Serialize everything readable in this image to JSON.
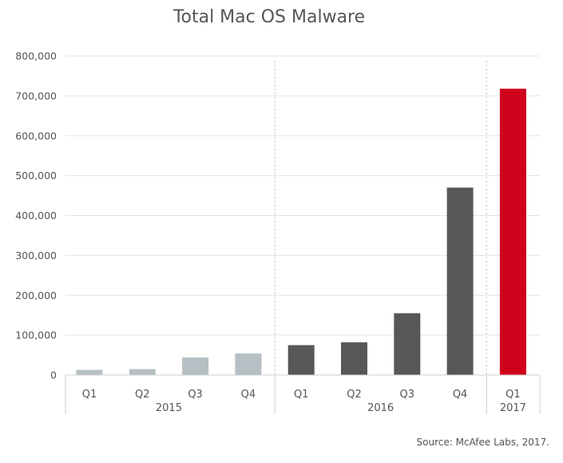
{
  "chart_data": {
    "type": "bar",
    "title": "Total Mac OS Malware",
    "xlabel": "",
    "ylabel": "",
    "ylim": [
      0,
      800000
    ],
    "yticks": [
      0,
      100000,
      200000,
      300000,
      400000,
      500000,
      600000,
      700000,
      800000
    ],
    "ytick_labels": [
      "0",
      "100,000",
      "200,000",
      "300,000",
      "400,000",
      "500,000",
      "600,000",
      "700,000",
      "800,000"
    ],
    "categories": [
      "Q1",
      "Q2",
      "Q3",
      "Q4",
      "Q1",
      "Q2",
      "Q3",
      "Q4",
      "Q1"
    ],
    "values": [
      13000,
      15000,
      44000,
      54000,
      75000,
      82000,
      155000,
      470000,
      718000
    ],
    "groups": [
      {
        "label": "2015",
        "count": 4,
        "color": "#b6bfc3"
      },
      {
        "label": "2016",
        "count": 4,
        "color": "#575757"
      },
      {
        "label": "2017",
        "count": 1,
        "color": "#d0021b"
      }
    ],
    "grid": true,
    "legend": "none",
    "source": "Source: McAfee Labs, 2017."
  }
}
